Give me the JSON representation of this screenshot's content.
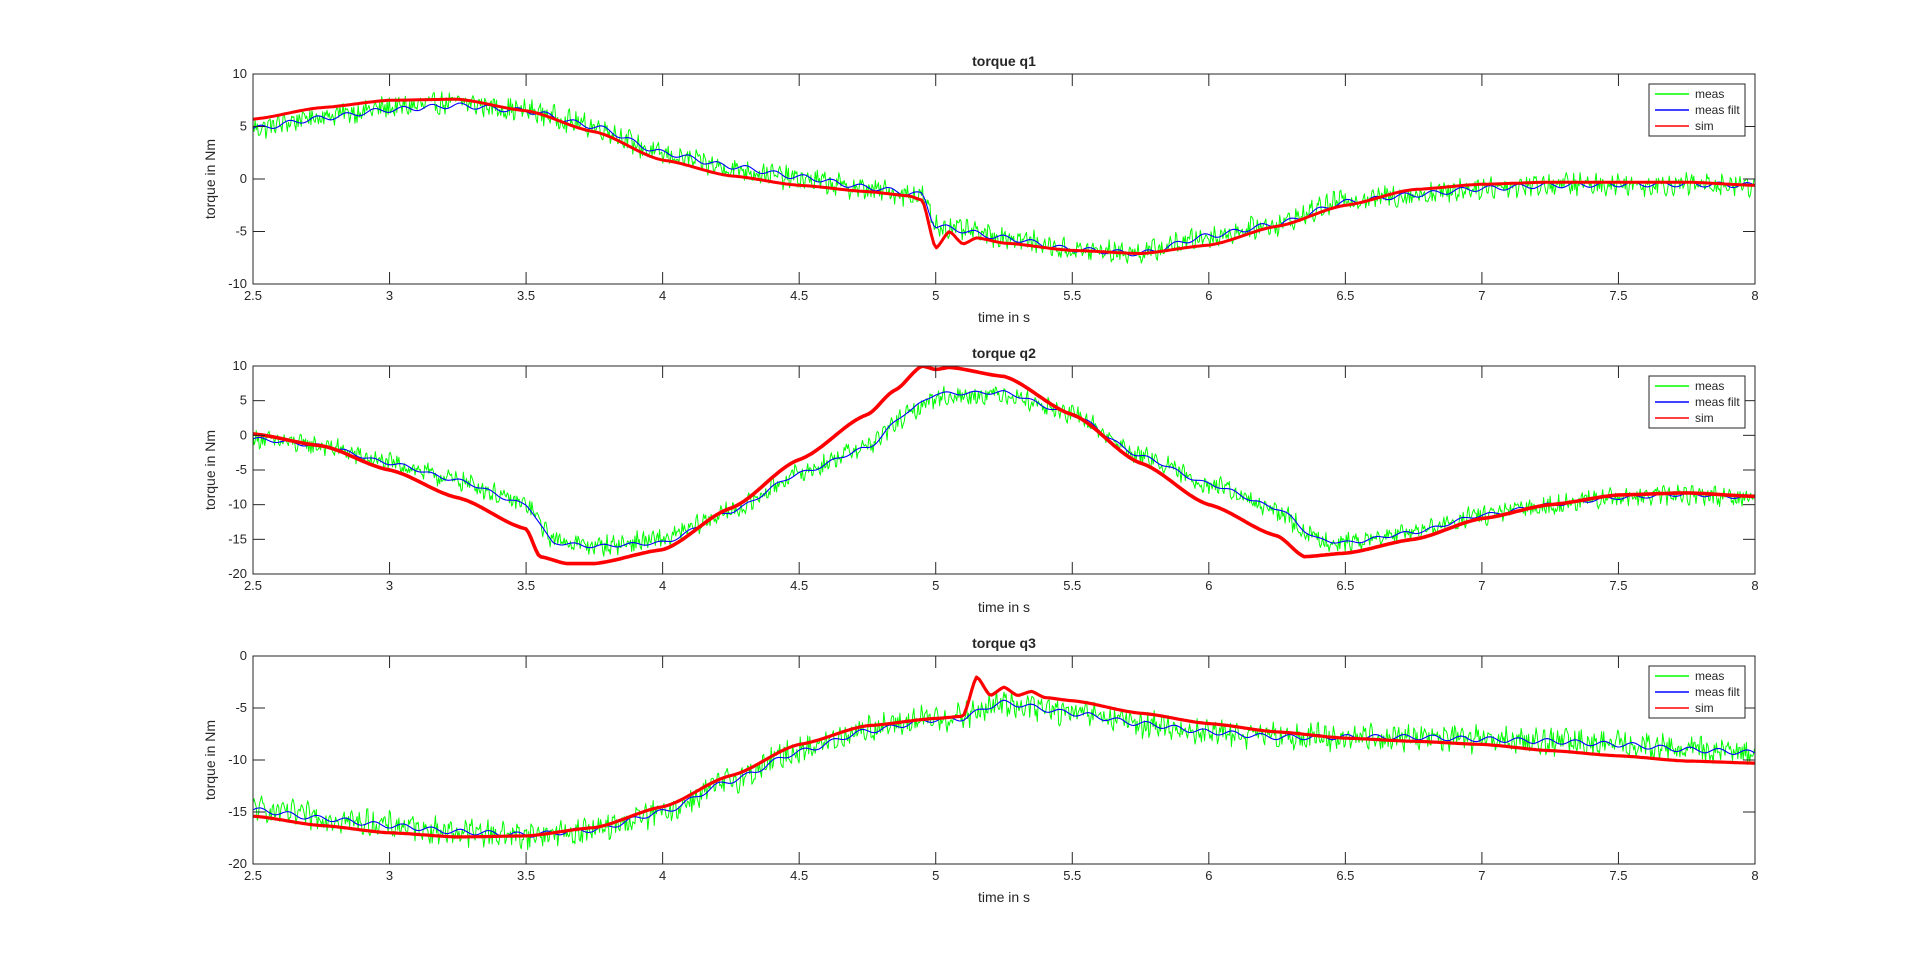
{
  "figure": {
    "background": "#ffffff"
  },
  "chart_data": [
    {
      "type": "line",
      "title": "torque q1",
      "xlabel": "time in s",
      "ylabel": "torque in Nm",
      "xlim": [
        2.5,
        8
      ],
      "ylim": [
        -10,
        10
      ],
      "xticks": [
        2.5,
        3,
        3.5,
        4,
        4.5,
        5,
        5.5,
        6,
        6.5,
        7,
        7.5,
        8
      ],
      "xtick_labels": [
        "2.5",
        "3",
        "3.5",
        "4",
        "4.5",
        "5",
        "5.5",
        "6",
        "6.5",
        "7",
        "7.5",
        "8"
      ],
      "yticks": [
        -10,
        -5,
        0,
        5,
        10
      ],
      "ytick_labels": [
        "-10",
        "-5",
        "0",
        "5",
        "10"
      ],
      "grid": false,
      "legend_position": "top-right",
      "series": [
        {
          "name": "meas",
          "color": "#00ff00",
          "noise_amplitude": 0.9,
          "x": [
            2.5,
            2.75,
            3.0,
            3.25,
            3.5,
            3.75,
            4.0,
            4.25,
            4.5,
            4.75,
            4.95,
            5.0,
            5.25,
            5.5,
            5.75,
            6.0,
            6.25,
            6.5,
            6.75,
            7.0,
            7.25,
            7.5,
            7.75,
            8.0
          ],
          "y": [
            4.8,
            6.0,
            6.8,
            7.3,
            6.5,
            5.0,
            2.3,
            1.0,
            0.0,
            -1.0,
            -1.6,
            -4.5,
            -5.5,
            -6.8,
            -7.0,
            -5.5,
            -4.3,
            -2.0,
            -1.5,
            -0.8,
            -0.5,
            -0.5,
            -0.5,
            -0.6
          ]
        },
        {
          "name": "meas filt",
          "color": "#0000ff",
          "x": [
            2.5,
            2.75,
            3.0,
            3.25,
            3.5,
            3.75,
            4.0,
            4.25,
            4.5,
            4.75,
            4.95,
            5.0,
            5.25,
            5.5,
            5.75,
            6.0,
            6.25,
            6.5,
            6.75,
            7.0,
            7.25,
            7.5,
            7.75,
            8.0
          ],
          "y": [
            4.8,
            5.8,
            6.6,
            7.0,
            6.5,
            5.0,
            2.5,
            1.2,
            0.2,
            -0.8,
            -1.5,
            -4.5,
            -5.6,
            -6.7,
            -7.1,
            -5.4,
            -4.3,
            -2.2,
            -1.5,
            -0.9,
            -0.6,
            -0.5,
            -0.5,
            -0.6
          ]
        },
        {
          "name": "sim",
          "color": "#ff0000",
          "x": [
            2.5,
            2.75,
            3.0,
            3.25,
            3.5,
            3.75,
            4.0,
            4.25,
            4.5,
            4.75,
            4.9,
            4.95,
            5.0,
            5.05,
            5.1,
            5.15,
            5.25,
            5.5,
            5.75,
            6.0,
            6.25,
            6.5,
            6.75,
            7.0,
            7.25,
            7.5,
            7.75,
            8.0
          ],
          "y": [
            5.7,
            6.8,
            7.5,
            7.6,
            6.5,
            4.5,
            1.8,
            0.3,
            -0.6,
            -1.2,
            -1.6,
            -2.0,
            -6.6,
            -5.0,
            -6.2,
            -5.6,
            -6.1,
            -6.8,
            -7.1,
            -6.3,
            -4.5,
            -2.5,
            -1.0,
            -0.5,
            -0.3,
            -0.3,
            -0.3,
            -0.6
          ]
        }
      ]
    },
    {
      "type": "line",
      "title": "torque q2",
      "xlabel": "time in s",
      "ylabel": "torque in Nm",
      "xlim": [
        2.5,
        8
      ],
      "ylim": [
        -20,
        10
      ],
      "xticks": [
        2.5,
        3,
        3.5,
        4,
        4.5,
        5,
        5.5,
        6,
        6.5,
        7,
        7.5,
        8
      ],
      "xtick_labels": [
        "2.5",
        "3",
        "3.5",
        "4",
        "4.5",
        "5",
        "5.5",
        "6",
        "6.5",
        "7",
        "7.5",
        "8"
      ],
      "yticks": [
        -20,
        -15,
        -10,
        -5,
        0,
        5,
        10
      ],
      "ytick_labels": [
        "-20",
        "-15",
        "-10",
        "-5",
        "0",
        "5",
        "10"
      ],
      "grid": false,
      "legend_position": "top-right",
      "series": [
        {
          "name": "meas",
          "color": "#00ff00",
          "noise_amplitude": 1.2,
          "x": [
            2.5,
            2.75,
            3.0,
            3.25,
            3.5,
            3.6,
            3.75,
            4.0,
            4.25,
            4.5,
            4.75,
            4.9,
            5.0,
            5.25,
            5.5,
            5.75,
            6.0,
            6.25,
            6.4,
            6.5,
            6.75,
            7.0,
            7.25,
            7.5,
            7.75,
            8.0
          ],
          "y": [
            -0.5,
            -1.5,
            -4.0,
            -6.5,
            -10.0,
            -15.0,
            -16.0,
            -15.0,
            -11.0,
            -5.5,
            -1.5,
            3.0,
            5.5,
            6.0,
            3.0,
            -3.0,
            -7.0,
            -11.0,
            -15.0,
            -15.5,
            -14.0,
            -11.5,
            -10.0,
            -9.0,
            -8.5,
            -9.0
          ]
        },
        {
          "name": "meas filt",
          "color": "#0000ff",
          "x": [
            2.5,
            2.75,
            3.0,
            3.25,
            3.5,
            3.6,
            3.75,
            4.0,
            4.25,
            4.5,
            4.75,
            4.9,
            5.0,
            5.25,
            5.5,
            5.75,
            6.0,
            6.25,
            6.4,
            6.5,
            6.75,
            7.0,
            7.25,
            7.5,
            7.75,
            8.0
          ],
          "y": [
            -0.5,
            -1.5,
            -4.0,
            -6.5,
            -10.0,
            -15.5,
            -16.0,
            -15.5,
            -11.0,
            -5.5,
            -1.8,
            3.5,
            6.0,
            6.2,
            3.0,
            -3.0,
            -7.0,
            -10.5,
            -15.0,
            -15.5,
            -14.0,
            -11.5,
            -10.0,
            -9.0,
            -8.5,
            -9.0
          ]
        },
        {
          "name": "sim",
          "color": "#ff0000",
          "x": [
            2.5,
            2.75,
            3.0,
            3.25,
            3.5,
            3.55,
            3.65,
            3.75,
            4.0,
            4.25,
            4.5,
            4.75,
            4.85,
            4.95,
            5.0,
            5.05,
            5.25,
            5.5,
            5.75,
            6.0,
            6.25,
            6.35,
            6.5,
            6.75,
            7.0,
            7.25,
            7.5,
            7.75,
            8.0
          ],
          "y": [
            0.2,
            -1.5,
            -5.0,
            -9.0,
            -13.5,
            -17.5,
            -18.5,
            -18.5,
            -16.5,
            -10.5,
            -3.5,
            3.0,
            6.5,
            10.0,
            9.5,
            9.8,
            8.5,
            3.0,
            -4.0,
            -10.0,
            -14.5,
            -17.5,
            -17.0,
            -15.0,
            -12.0,
            -10.0,
            -8.6,
            -8.3,
            -8.8
          ]
        }
      ]
    },
    {
      "type": "line",
      "title": "torque q3",
      "xlabel": "time in s",
      "ylabel": "torque in Nm",
      "xlim": [
        2.5,
        8
      ],
      "ylim": [
        -20,
        0
      ],
      "xticks": [
        2.5,
        3,
        3.5,
        4,
        4.5,
        5,
        5.5,
        6,
        6.5,
        7,
        7.5,
        8
      ],
      "xtick_labels": [
        "2.5",
        "3",
        "3.5",
        "4",
        "4.5",
        "5",
        "5.5",
        "6",
        "6.5",
        "7",
        "7.5",
        "8"
      ],
      "yticks": [
        -20,
        -15,
        -10,
        -5,
        0
      ],
      "ytick_labels": [
        "-20",
        "-15",
        "-10",
        "-5",
        "0"
      ],
      "grid": false,
      "legend_position": "top-right",
      "series": [
        {
          "name": "meas",
          "color": "#00ff00",
          "noise_amplitude": 1.1,
          "x": [
            2.5,
            2.75,
            3.0,
            3.25,
            3.5,
            3.75,
            4.0,
            4.25,
            4.5,
            4.75,
            5.0,
            5.1,
            5.25,
            5.5,
            5.75,
            6.0,
            6.25,
            6.5,
            6.75,
            7.0,
            7.25,
            7.5,
            7.75,
            8.0
          ],
          "y": [
            -14.7,
            -15.5,
            -16.3,
            -16.9,
            -17.2,
            -16.8,
            -15.0,
            -12.0,
            -9.0,
            -7.0,
            -6.0,
            -5.8,
            -4.5,
            -5.5,
            -6.5,
            -7.3,
            -7.8,
            -7.8,
            -7.8,
            -8.0,
            -8.2,
            -8.5,
            -9.0,
            -9.3
          ]
        },
        {
          "name": "meas filt",
          "color": "#0000ff",
          "x": [
            2.5,
            2.75,
            3.0,
            3.25,
            3.5,
            3.75,
            4.0,
            4.25,
            4.5,
            4.75,
            5.0,
            5.1,
            5.2,
            5.25,
            5.5,
            5.75,
            6.0,
            6.25,
            6.5,
            6.75,
            7.0,
            7.25,
            7.5,
            7.75,
            8.0
          ],
          "y": [
            -14.8,
            -15.6,
            -16.3,
            -16.9,
            -17.2,
            -16.7,
            -15.0,
            -12.0,
            -9.2,
            -7.2,
            -6.1,
            -6.0,
            -4.8,
            -4.5,
            -5.5,
            -6.5,
            -7.3,
            -7.8,
            -7.8,
            -7.8,
            -8.0,
            -8.2,
            -8.5,
            -9.0,
            -9.3
          ]
        },
        {
          "name": "sim",
          "color": "#ff0000",
          "x": [
            2.5,
            2.75,
            3.0,
            3.25,
            3.5,
            3.75,
            4.0,
            4.25,
            4.5,
            4.75,
            5.0,
            5.1,
            5.15,
            5.2,
            5.25,
            5.3,
            5.35,
            5.4,
            5.5,
            5.75,
            6.0,
            6.25,
            6.5,
            6.75,
            7.0,
            7.25,
            7.5,
            7.75,
            8.0
          ],
          "y": [
            -15.4,
            -16.3,
            -17.0,
            -17.4,
            -17.3,
            -16.5,
            -14.5,
            -11.5,
            -8.5,
            -6.7,
            -6.0,
            -5.8,
            -2.0,
            -3.8,
            -3.0,
            -3.8,
            -3.4,
            -4.0,
            -4.3,
            -5.5,
            -6.5,
            -7.3,
            -7.9,
            -8.2,
            -8.5,
            -9.1,
            -9.6,
            -10.1,
            -10.3
          ]
        }
      ]
    }
  ]
}
